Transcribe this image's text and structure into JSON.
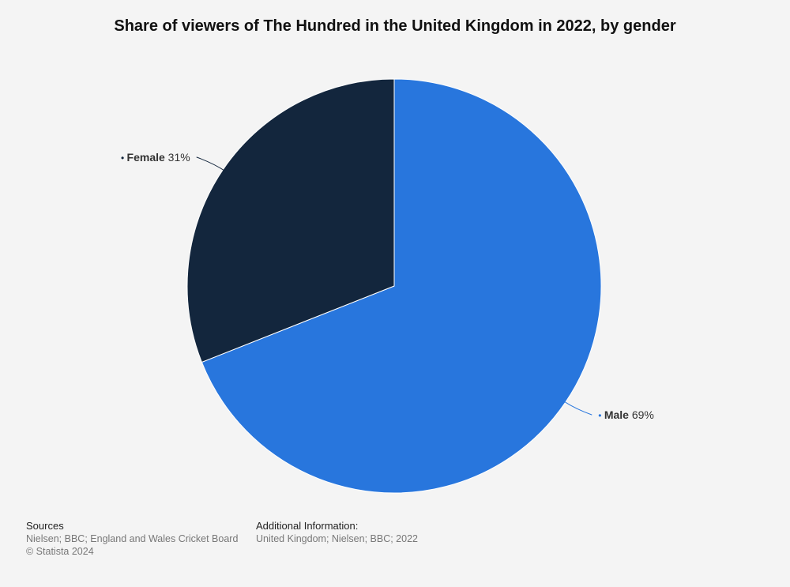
{
  "chart_data": {
    "type": "pie",
    "title": "Share of viewers of The Hundred in the United Kingdom in 2022, by gender",
    "unit": "%",
    "slices": [
      {
        "label": "Male",
        "value": 69,
        "color": "#2876dd"
      },
      {
        "label": "Female",
        "value": 31,
        "color": "#13263d"
      }
    ]
  },
  "footer": {
    "sources_heading": "Sources",
    "sources_text": "Nielsen; BBC; England and Wales Cricket Board",
    "copyright": "© Statista 2024",
    "additional_heading": "Additional Information:",
    "additional_text": "United Kingdom; Nielsen; BBC; 2022"
  }
}
